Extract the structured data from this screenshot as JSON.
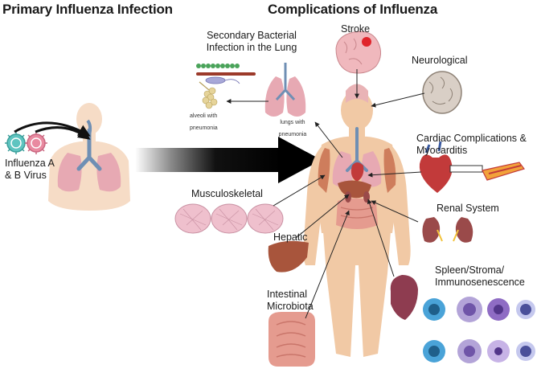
{
  "headings": {
    "primary": "Primary Influenza Infection",
    "complications": "Complications of Influenza"
  },
  "labels": {
    "virus": "Influenza A & B Virus",
    "secondary_bacterial": "Secondary Bacterial Infection in the Lung",
    "alveoli": "alveoli with pneumonia",
    "lungs_pneumonia": "lungs with pneumonia",
    "stroke": "Stroke",
    "neurological": "Neurological",
    "cardiac": "Cardiac Complications & Myocarditis",
    "musculoskeletal": "Musculoskeletal",
    "renal": "Renal System",
    "hepatic": "Hepatic",
    "spleen": "Spleen/Stroma/ Immunosenescence",
    "intestinal": "Intestinal Microbiota"
  },
  "colors": {
    "skin": "#f1c9a5",
    "skin_light": "#f6dcc6",
    "lung": "#e7a9b3",
    "airway": "#6f8fb4",
    "virus_teal": "#5ec4c0",
    "virus_pink": "#e98aa0",
    "arrow_dark": "#111111",
    "brain": "#f0b8bd",
    "heart": "#c23a3a",
    "kidney": "#9a4a4a",
    "liver": "#a8553c",
    "intestine": "#e59b8f",
    "spleen": "#8e3c50",
    "immune_blue": "#4aa3d8",
    "immune_purple": "#8f6cc4"
  }
}
